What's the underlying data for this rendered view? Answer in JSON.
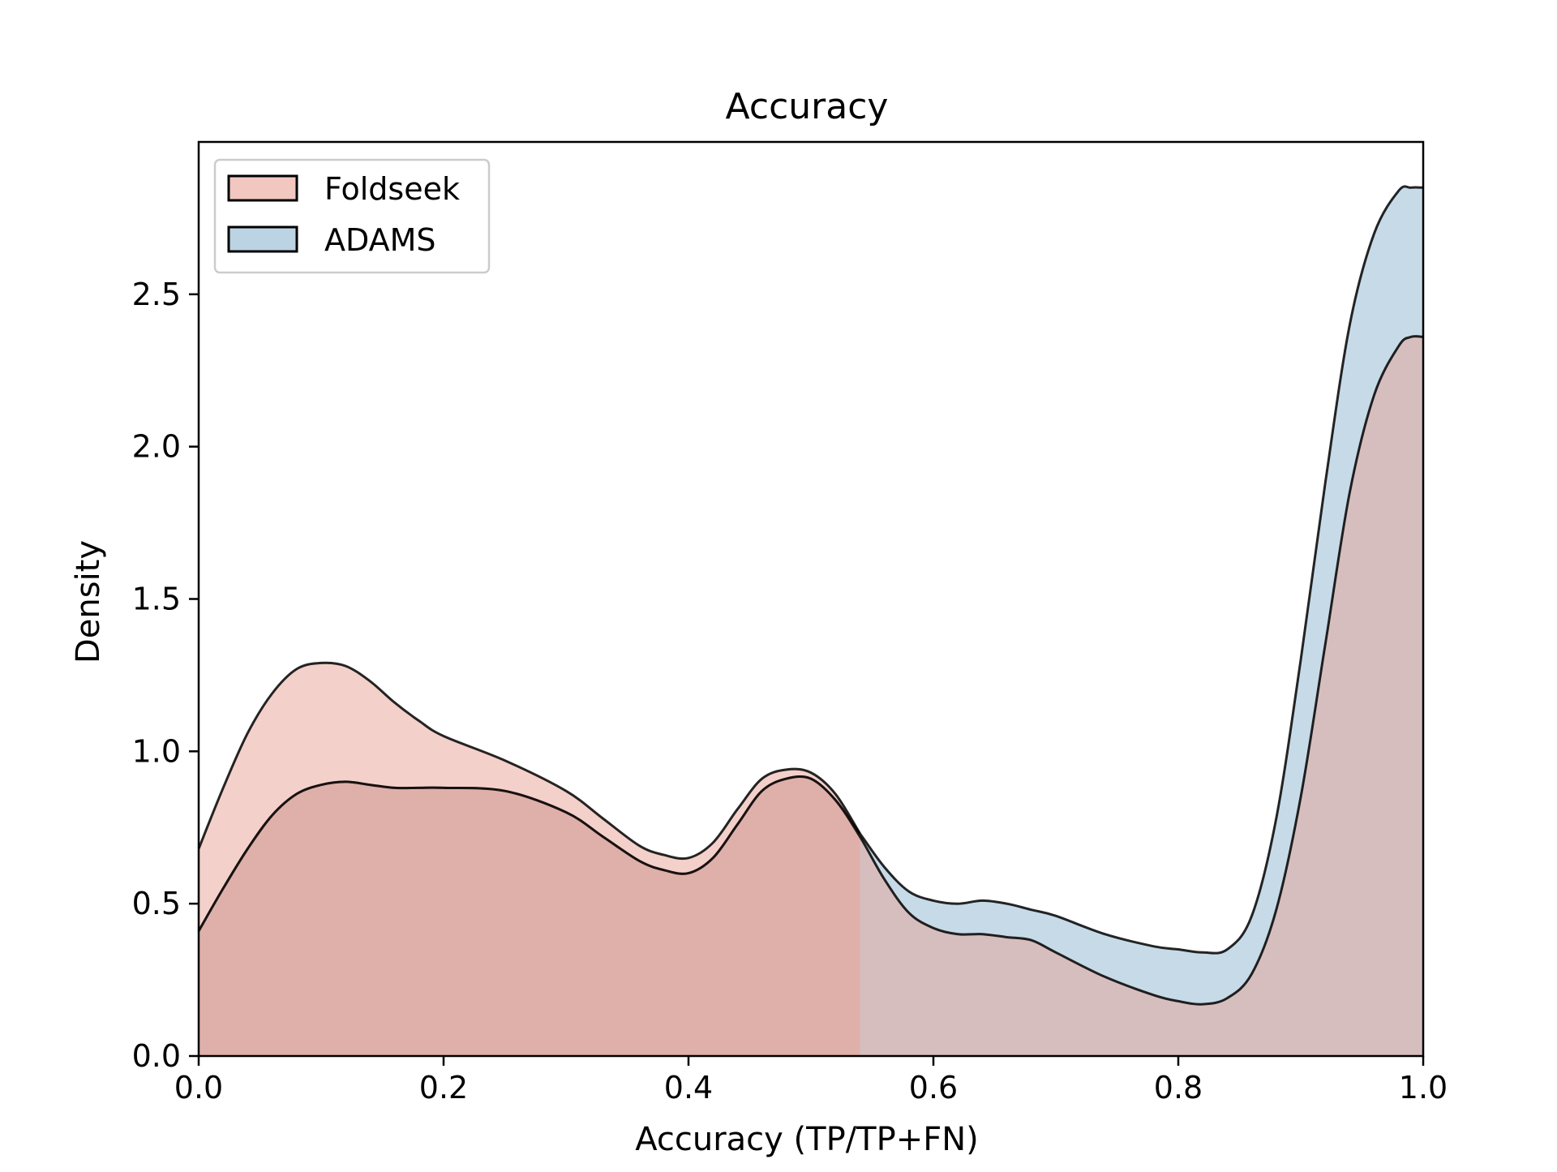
{
  "chart_data": {
    "type": "area",
    "title": "Accuracy",
    "xlabel": "Accuracy (TP/TP+FN)",
    "ylabel": "Density",
    "xlim": [
      0.0,
      1.0
    ],
    "ylim": [
      0.0,
      3.0
    ],
    "x_ticks": [
      "0.0",
      "0.2",
      "0.4",
      "0.6",
      "0.8",
      "1.0"
    ],
    "y_ticks": [
      "0.0",
      "0.5",
      "1.0",
      "1.5",
      "2.0",
      "2.5"
    ],
    "grid": false,
    "legend_position": "top-left",
    "series": [
      {
        "name": "Foldseek",
        "fill_color": "#e8a195",
        "x": [
          0.0,
          0.02,
          0.04,
          0.06,
          0.08,
          0.1,
          0.12,
          0.14,
          0.16,
          0.18,
          0.2,
          0.25,
          0.3,
          0.33,
          0.36,
          0.38,
          0.4,
          0.42,
          0.44,
          0.46,
          0.48,
          0.5,
          0.52,
          0.54,
          0.56,
          0.58,
          0.6,
          0.62,
          0.64,
          0.66,
          0.68,
          0.7,
          0.74,
          0.78,
          0.8,
          0.82,
          0.84,
          0.86,
          0.88,
          0.9,
          0.92,
          0.94,
          0.96,
          0.98,
          0.99,
          1.0
        ],
        "y": [
          0.41,
          0.55,
          0.68,
          0.79,
          0.86,
          0.89,
          0.9,
          0.89,
          0.88,
          0.88,
          0.88,
          0.87,
          0.8,
          0.72,
          0.64,
          0.61,
          0.6,
          0.65,
          0.76,
          0.87,
          0.91,
          0.91,
          0.84,
          0.72,
          0.58,
          0.47,
          0.42,
          0.4,
          0.4,
          0.39,
          0.38,
          0.34,
          0.26,
          0.2,
          0.18,
          0.17,
          0.19,
          0.27,
          0.48,
          0.85,
          1.35,
          1.85,
          2.17,
          2.33,
          2.36,
          2.36
        ]
      },
      {
        "name": "ADAMS",
        "fill_color": "#8fb6d0",
        "x": [
          0.0,
          0.02,
          0.04,
          0.06,
          0.08,
          0.1,
          0.12,
          0.14,
          0.16,
          0.18,
          0.2,
          0.25,
          0.3,
          0.33,
          0.36,
          0.38,
          0.4,
          0.42,
          0.44,
          0.46,
          0.48,
          0.5,
          0.52,
          0.54,
          0.56,
          0.58,
          0.6,
          0.62,
          0.64,
          0.66,
          0.68,
          0.7,
          0.74,
          0.78,
          0.8,
          0.82,
          0.84,
          0.86,
          0.88,
          0.9,
          0.92,
          0.94,
          0.96,
          0.98,
          0.99,
          1.0
        ],
        "y": [
          0.41,
          0.55,
          0.68,
          0.79,
          0.86,
          0.89,
          0.9,
          0.89,
          0.88,
          0.88,
          0.88,
          0.87,
          0.8,
          0.72,
          0.64,
          0.61,
          0.6,
          0.65,
          0.76,
          0.87,
          0.91,
          0.91,
          0.84,
          0.73,
          0.62,
          0.54,
          0.51,
          0.5,
          0.51,
          0.5,
          0.48,
          0.46,
          0.4,
          0.36,
          0.35,
          0.34,
          0.35,
          0.46,
          0.78,
          1.3,
          1.88,
          2.4,
          2.7,
          2.84,
          2.85,
          2.85
        ]
      },
      {
        "name": "",
        "fill_color": "#e8a195",
        "x": [
          0.0,
          0.02,
          0.04,
          0.06,
          0.08,
          0.1,
          0.12,
          0.14,
          0.16,
          0.18,
          0.2,
          0.25,
          0.3,
          0.33,
          0.36,
          0.38,
          0.4,
          0.42,
          0.44,
          0.46,
          0.48,
          0.5,
          0.52,
          0.54
        ],
        "y": [
          0.68,
          0.88,
          1.06,
          1.19,
          1.27,
          1.29,
          1.28,
          1.23,
          1.16,
          1.1,
          1.05,
          0.97,
          0.87,
          0.78,
          0.69,
          0.66,
          0.65,
          0.7,
          0.81,
          0.91,
          0.94,
          0.93,
          0.86,
          0.73
        ]
      }
    ]
  }
}
